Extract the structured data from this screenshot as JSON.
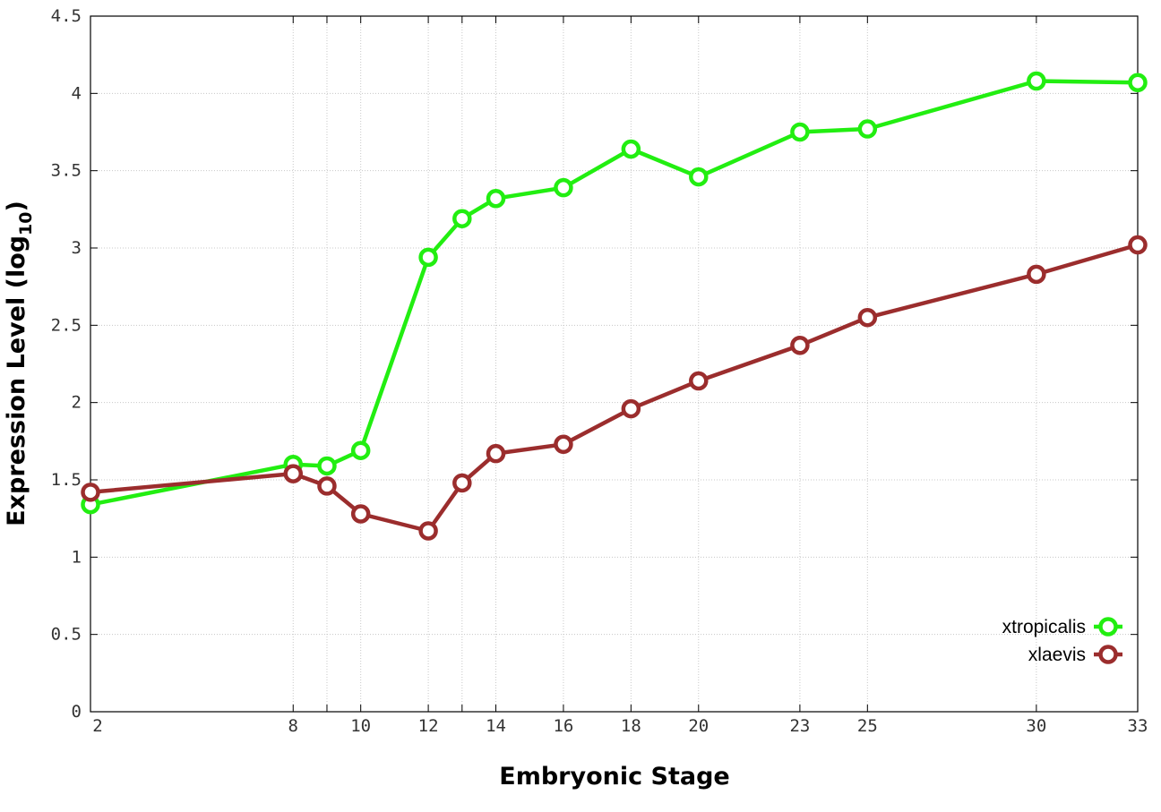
{
  "chart_data": {
    "type": "line",
    "xlabel": "Embryonic Stage",
    "ylabel_main": "Expression Level (log",
    "ylabel_sub": "10",
    "ylabel_close": ")",
    "x_categories": [
      "2",
      "8",
      "9",
      "10",
      "12",
      "13",
      "14",
      "16",
      "18",
      "20",
      "23",
      "25",
      "30",
      "33"
    ],
    "x_tick_labels": [
      "2",
      "8",
      "10",
      "12",
      "14",
      "16",
      "18",
      "20",
      "23",
      "25",
      "30",
      "33"
    ],
    "ylim": [
      0,
      4.5
    ],
    "y_ticks": [
      "0",
      "0.5",
      "1",
      "1.5",
      "2",
      "2.5",
      "3",
      "3.5",
      "4",
      "4.5"
    ],
    "grid": true,
    "legend_position": "bottom-right",
    "series": [
      {
        "name": "xtropicalis",
        "color": "#22ee11",
        "values": [
          1.34,
          1.6,
          1.59,
          1.69,
          2.94,
          3.19,
          3.32,
          3.39,
          3.64,
          3.46,
          3.75,
          3.77,
          4.08,
          4.07
        ]
      },
      {
        "name": "xlaevis",
        "color": "#9b2d2d",
        "values": [
          1.42,
          1.54,
          1.46,
          1.28,
          1.17,
          1.48,
          1.67,
          1.73,
          1.96,
          2.14,
          2.37,
          2.55,
          2.83,
          3.02
        ]
      }
    ]
  }
}
